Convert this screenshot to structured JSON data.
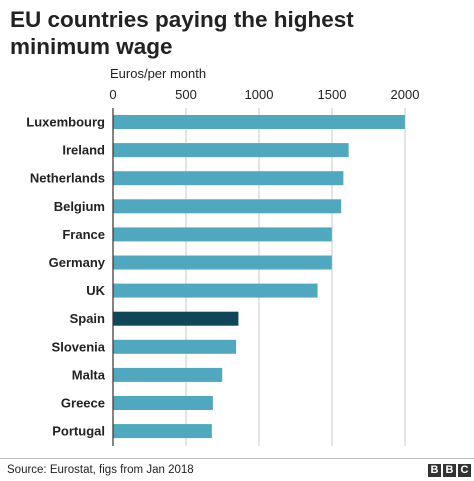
{
  "header": {
    "title": "EU countries paying the highest minimum wage"
  },
  "footer": {
    "source": "Source: Eurostat, figs from Jan 2018",
    "logo_letters": [
      "B",
      "B",
      "C"
    ]
  },
  "colors": {
    "bar": "#4fa8bd",
    "highlight": "#0f4658",
    "grid": "#c8c8c8",
    "axis": "#333333",
    "text": "#222222"
  },
  "chart_data": {
    "type": "bar",
    "orientation": "horizontal",
    "title": "EU countries paying the highest minimum wage",
    "xlabel": "Euros/per month",
    "ylabel": "",
    "xlim": [
      0,
      2000
    ],
    "ticks": [
      0,
      500,
      1000,
      1500,
      2000
    ],
    "grid": true,
    "categories": [
      "Luxembourg",
      "Ireland",
      "Netherlands",
      "Belgium",
      "France",
      "Germany",
      "UK",
      "Spain",
      "Slovenia",
      "Malta",
      "Greece",
      "Portugal"
    ],
    "values": [
      1999,
      1614,
      1578,
      1563,
      1498,
      1498,
      1401,
      859,
      843,
      748,
      684,
      677
    ],
    "highlight": "Spain"
  }
}
